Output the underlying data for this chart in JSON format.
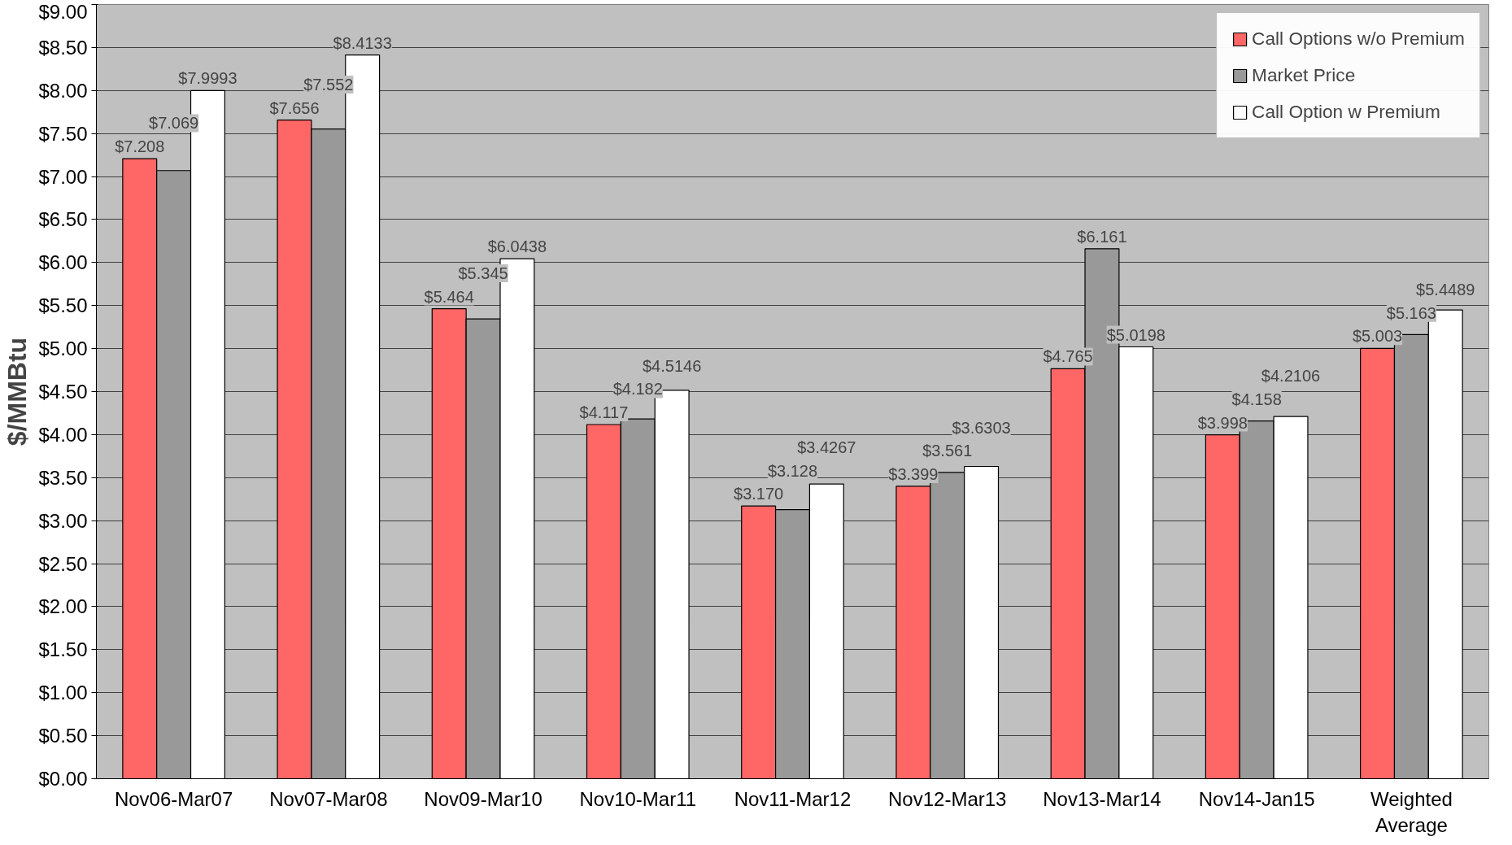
{
  "chart_data": {
    "type": "bar",
    "ylabel": "$/MMBtu",
    "categories": [
      "Nov06-Mar07",
      "Nov07-Mar08",
      "Nov09-Mar10",
      "Nov10-Mar11",
      "Nov11-Mar12",
      "Nov12-Mar13",
      "Nov13-Mar14",
      "Nov14-Jan15",
      "Weighted Average"
    ],
    "series": [
      {
        "name": "Call Options w/o Premium",
        "color": "#ff6666",
        "values": [
          7.208,
          7.656,
          5.464,
          4.117,
          3.17,
          3.399,
          4.765,
          3.998,
          5.003
        ],
        "value_labels": [
          "$7.208",
          "$7.656",
          "$5.464",
          "$4.117",
          "$3.170",
          "$3.399",
          "$4.765",
          "$3.998",
          "$5.003"
        ]
      },
      {
        "name": "Market Price",
        "color": "#999999",
        "values": [
          7.069,
          7.552,
          5.345,
          4.182,
          3.128,
          3.561,
          6.161,
          4.158,
          5.163
        ],
        "value_labels": [
          "$7.069",
          "$7.552",
          "$5.345",
          "$4.182",
          "$3.128",
          "$3.561",
          "$6.161",
          "$4.158",
          "$5.163"
        ]
      },
      {
        "name": "Call Option w Premium",
        "color": "#ffffff",
        "values": [
          7.9993,
          8.4133,
          6.0438,
          4.5146,
          3.4267,
          3.6303,
          5.0198,
          4.2106,
          5.4489
        ],
        "value_labels": [
          "$7.9993",
          "$8.4133",
          "$6.0438",
          "$4.5146",
          "$3.4267",
          "$3.6303",
          "$5.0198",
          "$4.2106",
          "$5.4489"
        ]
      }
    ],
    "ylim": [
      0,
      9
    ],
    "yticks": [
      {
        "value": 0,
        "label": "$0.00"
      },
      {
        "value": 0.5,
        "label": "$0.50"
      },
      {
        "value": 1,
        "label": "$1.00"
      },
      {
        "value": 1.5,
        "label": "$1.50"
      },
      {
        "value": 2,
        "label": "$2.00"
      },
      {
        "value": 2.5,
        "label": "$2.50"
      },
      {
        "value": 3,
        "label": "$3.00"
      },
      {
        "value": 3.5,
        "label": "$3.50"
      },
      {
        "value": 4,
        "label": "$4.00"
      },
      {
        "value": 4.5,
        "label": "$4.50"
      },
      {
        "value": 5,
        "label": "$5.00"
      },
      {
        "value": 5.5,
        "label": "$5.50"
      },
      {
        "value": 6,
        "label": "$6.00"
      },
      {
        "value": 6.5,
        "label": "$6.50"
      },
      {
        "value": 7,
        "label": "$7.00"
      },
      {
        "value": 7.5,
        "label": "$7.50"
      },
      {
        "value": 8,
        "label": "$8.00"
      },
      {
        "value": 8.5,
        "label": "$8.50"
      },
      {
        "value": 9,
        "label": "$9.00"
      }
    ],
    "grid": "y",
    "legend": "top right"
  }
}
